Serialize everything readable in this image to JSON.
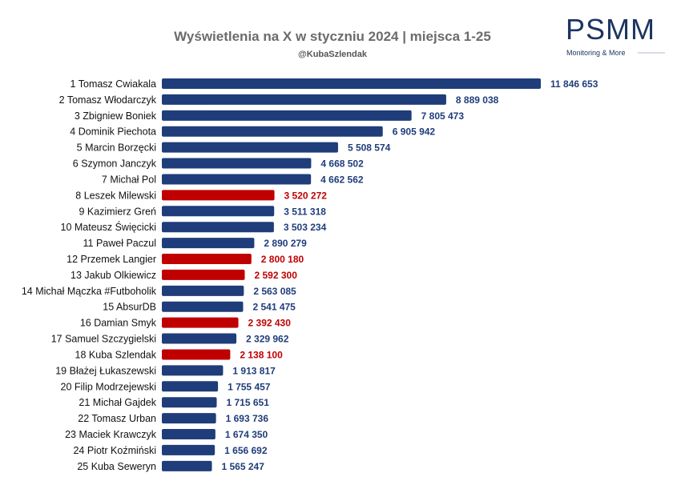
{
  "header": {
    "title": "Wyświetlenia na X w styczniu 2024 | miejsca 1-25",
    "subtitle": "@KubaSzlendak"
  },
  "logo": {
    "name": "PSMM",
    "tagline": "Monitoring & More"
  },
  "colors": {
    "default_bar": "#1f3d7a",
    "highlight_bar": "#c00000",
    "default_label": "#1f3d7a",
    "highlight_label": "#c00000"
  },
  "chart_data": {
    "type": "bar",
    "orientation": "horizontal",
    "title": "Wyświetlenia na X w styczniu 2024 | miejsca 1-25",
    "subtitle": "@KubaSzlendak",
    "xlim": [
      0,
      12000000
    ],
    "grid": false,
    "legend": "none",
    "categories": [
      "1 Tomasz Cwiakala",
      "2 Tomasz Włodarczyk",
      "3 Zbigniew Boniek",
      "4 Dominik Piechota",
      "5 Marcin Borzęcki",
      "6 Szymon Janczyk",
      "7 Michał Pol",
      "8 Leszek Milewski",
      "9 Kazimierz Greń",
      "10 Mateusz Święcicki",
      "11 Paweł Paczul",
      "12 Przemek Langier",
      "13 Jakub Olkiewicz",
      "14 Michał Mączka #Futboholik",
      "15 AbsurDB",
      "16 Damian Smyk",
      "17 Samuel Szczygielski",
      "18 Kuba Szlendak",
      "19 Błażej Łukaszewski",
      "20 Filip Modrzejewski",
      "21 Michał Gajdek",
      "22 Tomasz Urban",
      "23 Maciek Krawczyk",
      "24 Piotr Koźmiński",
      "25 Kuba Seweryn"
    ],
    "values": [
      11846653,
      8889038,
      7805473,
      6905942,
      5508574,
      4668502,
      4662562,
      3520272,
      3511318,
      3503234,
      2890279,
      2800180,
      2592300,
      2563085,
      2541475,
      2392430,
      2329962,
      2138100,
      1913817,
      1755457,
      1715651,
      1693736,
      1674350,
      1656692,
      1565247
    ],
    "value_labels": [
      "11 846 653",
      "8 889 038",
      "7 805 473",
      "6 905 942",
      "5 508 574",
      "4 668 502",
      "4 662 562",
      "3 520 272",
      "3 511 318",
      "3 503 234",
      "2 890 279",
      "2 800 180",
      "2 592 300",
      "2 563 085",
      "2 541 475",
      "2 392 430",
      "2 329 962",
      "2 138 100",
      "1 913 817",
      "1 755 457",
      "1 715 651",
      "1 693 736",
      "1 674 350",
      "1 656 692",
      "1 565 247"
    ],
    "highlighted": [
      false,
      false,
      false,
      false,
      false,
      false,
      false,
      true,
      false,
      false,
      false,
      true,
      true,
      false,
      false,
      true,
      false,
      true,
      false,
      false,
      false,
      false,
      false,
      false,
      false
    ]
  }
}
